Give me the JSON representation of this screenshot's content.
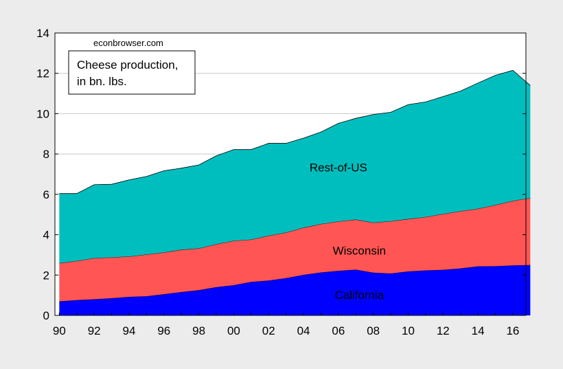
{
  "chart_data": {
    "type": "area",
    "stacked": true,
    "x": [
      1990,
      1991,
      1992,
      1993,
      1994,
      1995,
      1996,
      1997,
      1998,
      1999,
      2000,
      2001,
      2002,
      2003,
      2004,
      2005,
      2006,
      2007,
      2008,
      2009,
      2010,
      2011,
      2012,
      2013,
      2014,
      2015,
      2016,
      2017
    ],
    "series": [
      {
        "name": "California",
        "color": "#0000ff",
        "values": [
          0.7,
          0.76,
          0.8,
          0.85,
          0.92,
          0.95,
          1.05,
          1.16,
          1.25,
          1.4,
          1.5,
          1.66,
          1.73,
          1.85,
          2.01,
          2.13,
          2.21,
          2.27,
          2.12,
          2.08,
          2.18,
          2.23,
          2.26,
          2.33,
          2.43,
          2.44,
          2.48,
          2.5
        ]
      },
      {
        "name": "Wisconsin",
        "color": "#ff5555",
        "values": [
          1.89,
          1.94,
          2.04,
          2.03,
          2.0,
          2.07,
          2.07,
          2.1,
          2.07,
          2.13,
          2.2,
          2.1,
          2.22,
          2.26,
          2.34,
          2.4,
          2.45,
          2.48,
          2.48,
          2.59,
          2.6,
          2.65,
          2.77,
          2.84,
          2.86,
          3.03,
          3.2,
          3.32
        ]
      },
      {
        "name": "Rest-of-US",
        "color": "#00bebe",
        "values": [
          3.45,
          3.34,
          3.64,
          3.62,
          3.8,
          3.87,
          4.05,
          4.04,
          4.14,
          4.38,
          4.52,
          4.46,
          4.58,
          4.42,
          4.44,
          4.56,
          4.86,
          5.02,
          5.36,
          5.4,
          5.67,
          5.7,
          5.82,
          5.95,
          6.23,
          6.43,
          6.47,
          5.58
        ]
      }
    ],
    "y_range": [
      0,
      14
    ],
    "y_ticks": [
      0,
      2,
      4,
      6,
      8,
      10,
      12,
      14
    ],
    "x_tick_values": [
      1990,
      1992,
      1994,
      1996,
      1998,
      2000,
      2002,
      2004,
      2006,
      2008,
      2010,
      2012,
      2014,
      2016
    ],
    "x_tick_labels": [
      "90",
      "92",
      "94",
      "96",
      "98",
      "00",
      "02",
      "04",
      "06",
      "08",
      "10",
      "12",
      "14",
      "16"
    ],
    "grid": "horizontal",
    "annotation_title_line1": "Cheese production,",
    "annotation_title_line2": "in bn. lbs.",
    "source": "econbrowser.com",
    "colors": {
      "background": "#ececec",
      "plot_background": "#ffffff",
      "grid": "#c8c8c8"
    }
  }
}
